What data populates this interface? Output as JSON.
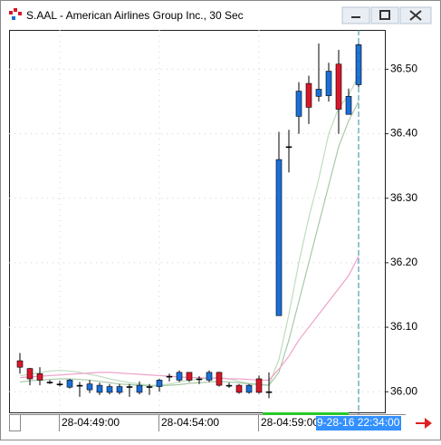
{
  "chart_data": {
    "type": "candlestick",
    "title": "S.AAL - American Airlines Group Inc., 30 Sec",
    "categories": [
      null,
      null,
      null,
      null,
      "28-04:49:00",
      null,
      null,
      null,
      null,
      null,
      null,
      null,
      null,
      null,
      "28-04:54:00",
      null,
      null,
      null,
      null,
      null,
      null,
      null,
      null,
      null,
      "28-04:59:00",
      null,
      null,
      null,
      null,
      null,
      null,
      null,
      null,
      null,
      null
    ],
    "open": [
      36.048,
      36.036,
      36.028,
      36.015,
      36.012,
      36.007,
      36.01,
      36.003,
      35.999,
      35.999,
      35.999,
      36.008,
      35.999,
      36.008,
      36.008,
      36.024,
      36.018,
      36.03,
      36.02,
      36.018,
      36.03,
      36.01,
      36.01,
      35.999,
      36.02,
      36.0,
      36.118,
      36.38,
      36.427,
      36.478,
      36.458,
      36.459,
      36.508,
      36.43,
      36.476
    ],
    "high": [
      36.06,
      36.037,
      36.038,
      36.018,
      36.017,
      36.02,
      36.015,
      36.018,
      36.014,
      36.012,
      36.012,
      36.012,
      36.016,
      36.012,
      36.02,
      36.028,
      36.033,
      36.03,
      36.024,
      36.033,
      36.031,
      36.014,
      36.012,
      36.012,
      36.025,
      36.03,
      36.403,
      36.406,
      36.48,
      36.49,
      36.54,
      36.51,
      36.53,
      36.47,
      36.54
    ],
    "low": [
      36.028,
      36.01,
      36.01,
      36.012,
      36.008,
      36.005,
      35.992,
      35.998,
      35.995,
      35.996,
      35.996,
      35.992,
      35.996,
      35.995,
      36.0,
      36.016,
      36.015,
      36.015,
      36.012,
      36.015,
      36.008,
      36.006,
      35.997,
      35.997,
      35.997,
      35.99,
      36.118,
      36.34,
      36.4,
      36.415,
      36.45,
      36.45,
      36.4,
      36.43,
      36.47
    ],
    "close": [
      36.038,
      36.02,
      36.018,
      36.015,
      36.012,
      36.018,
      36.01,
      36.012,
      36.01,
      36.008,
      36.008,
      36.008,
      36.01,
      36.008,
      36.018,
      36.024,
      36.03,
      36.018,
      36.02,
      36.03,
      36.01,
      36.01,
      35.999,
      36.01,
      35.999,
      36.0,
      36.36,
      36.38,
      36.466,
      36.441,
      36.469,
      36.497,
      36.438,
      36.458,
      36.538
    ],
    "up_color": "#1a6fd8",
    "down_color": "#d8182a",
    "series": [
      {
        "color": "#c0dcc0",
        "values": [
          36.025,
          36.027,
          36.03,
          36.032,
          36.033,
          36.032,
          36.03,
          36.027,
          36.024,
          36.02,
          36.017,
          36.014,
          36.012,
          36.01,
          36.01,
          36.012,
          36.015,
          36.018,
          36.02,
          36.021,
          36.022,
          36.02,
          36.016,
          36.013,
          36.012,
          36.01,
          36.05,
          36.12,
          36.2,
          36.27,
          36.33,
          36.4,
          36.44,
          36.46,
          36.49
        ]
      },
      {
        "color": "#a8c8a8",
        "values": [
          36.015,
          36.017,
          36.018,
          36.019,
          36.02,
          36.02,
          36.019,
          36.018,
          36.016,
          36.014,
          36.012,
          36.011,
          36.01,
          36.009,
          36.009,
          36.01,
          36.011,
          36.013,
          36.014,
          36.015,
          36.016,
          36.015,
          36.014,
          36.012,
          36.011,
          36.01,
          36.03,
          36.08,
          36.14,
          36.2,
          36.26,
          36.32,
          36.38,
          36.42,
          36.45
        ]
      },
      {
        "color": "#f0a0c8",
        "values": [
          36.022,
          36.023,
          36.024,
          36.025,
          36.026,
          36.027,
          36.028,
          36.029,
          36.03,
          36.03,
          36.029,
          36.028,
          36.027,
          36.026,
          36.025,
          36.024,
          36.023,
          36.022,
          36.022,
          36.021,
          36.021,
          36.02,
          36.02,
          36.019,
          36.018,
          36.018,
          36.035,
          36.055,
          36.08,
          36.1,
          36.12,
          36.14,
          36.16,
          36.18,
          36.21
        ]
      }
    ],
    "ylim": [
      35.968,
      36.561
    ],
    "yticks": [
      {
        "value": 36.0,
        "label": "36.00"
      },
      {
        "value": 36.1,
        "label": "36.10"
      },
      {
        "value": 36.2,
        "label": "36.20"
      },
      {
        "value": 36.3,
        "label": "36.30"
      },
      {
        "value": 36.4,
        "label": "36.40"
      },
      {
        "value": 36.5,
        "label": "36.50"
      }
    ],
    "grid": true,
    "cursor_label": "9-28-16 22:34:00"
  }
}
